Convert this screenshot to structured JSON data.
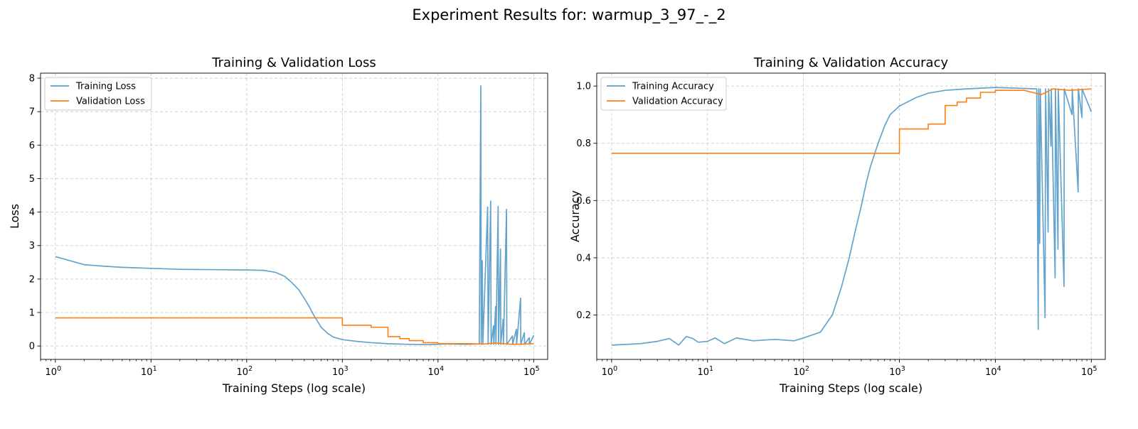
{
  "figure": {
    "suptitle": "Experiment Results for: warmup_3_97_-_2"
  },
  "chart_data": [
    {
      "type": "line",
      "title": "Training & Validation Loss",
      "xlabel": "Training Steps (log scale)",
      "ylabel": "Loss",
      "xscale": "log",
      "xlim": [
        0.7,
        140000
      ],
      "ylim": [
        -0.4,
        8.15
      ],
      "x_ticks": [
        1,
        10,
        100,
        1000,
        10000,
        100000
      ],
      "x_tick_labels": [
        {
          "base": "10",
          "exp": "0"
        },
        {
          "base": "10",
          "exp": "1"
        },
        {
          "base": "10",
          "exp": "2"
        },
        {
          "base": "10",
          "exp": "3"
        },
        {
          "base": "10",
          "exp": "4"
        },
        {
          "base": "10",
          "exp": "5"
        }
      ],
      "y_ticks": [
        0,
        1,
        2,
        3,
        4,
        5,
        6,
        7,
        8
      ],
      "y_tick_labels": [
        "0",
        "1",
        "2",
        "3",
        "4",
        "5",
        "6",
        "7",
        "8"
      ],
      "grid": true,
      "legend": "upper-left",
      "series": [
        {
          "name": "Training Loss",
          "color": "#5b9ec9",
          "points": [
            [
              1,
              2.67
            ],
            [
              2,
              2.43
            ],
            [
              3,
              2.39
            ],
            [
              5,
              2.35
            ],
            [
              10,
              2.32
            ],
            [
              20,
              2.29
            ],
            [
              50,
              2.28
            ],
            [
              100,
              2.27
            ],
            [
              150,
              2.26
            ],
            [
              200,
              2.2
            ],
            [
              250,
              2.08
            ],
            [
              300,
              1.88
            ],
            [
              350,
              1.68
            ],
            [
              400,
              1.42
            ],
            [
              450,
              1.18
            ],
            [
              500,
              0.93
            ],
            [
              550,
              0.74
            ],
            [
              600,
              0.56
            ],
            [
              700,
              0.38
            ],
            [
              800,
              0.27
            ],
            [
              1000,
              0.19
            ],
            [
              1500,
              0.13
            ],
            [
              2000,
              0.1
            ],
            [
              3000,
              0.07
            ],
            [
              5000,
              0.05
            ],
            [
              8000,
              0.04
            ],
            [
              12000,
              0.06
            ],
            [
              20000,
              0.05
            ],
            [
              27000,
              0.06
            ],
            [
              28000,
              7.77
            ],
            [
              28300,
              0.05
            ],
            [
              29000,
              2.55
            ],
            [
              29400,
              0.05
            ],
            [
              33000,
              4.15
            ],
            [
              33400,
              0.05
            ],
            [
              35500,
              4.33
            ],
            [
              35900,
              0.05
            ],
            [
              38000,
              0.6
            ],
            [
              38300,
              0.05
            ],
            [
              40000,
              1.18
            ],
            [
              40300,
              0.05
            ],
            [
              42500,
              4.17
            ],
            [
              42900,
              0.05
            ],
            [
              45000,
              2.9
            ],
            [
              45300,
              0.05
            ],
            [
              48000,
              0.8
            ],
            [
              48300,
              0.05
            ],
            [
              52000,
              4.08
            ],
            [
              52400,
              0.05
            ],
            [
              60000,
              0.3
            ],
            [
              60300,
              0.05
            ],
            [
              66000,
              0.5
            ],
            [
              66300,
              0.05
            ],
            [
              73000,
              1.43
            ],
            [
              73300,
              0.05
            ],
            [
              80000,
              0.4
            ],
            [
              80300,
              0.05
            ],
            [
              90000,
              0.25
            ],
            [
              90300,
              0.05
            ],
            [
              100000,
              0.32
            ]
          ]
        },
        {
          "name": "Validation Loss",
          "color": "#ff7f0e",
          "points": [
            [
              1,
              0.84
            ],
            [
              1000,
              0.84
            ],
            [
              1000,
              0.62
            ],
            [
              2000,
              0.62
            ],
            [
              2000,
              0.56
            ],
            [
              3000,
              0.56
            ],
            [
              3000,
              0.28
            ],
            [
              4000,
              0.28
            ],
            [
              4000,
              0.22
            ],
            [
              5000,
              0.22
            ],
            [
              5000,
              0.16
            ],
            [
              7000,
              0.16
            ],
            [
              7000,
              0.1
            ],
            [
              10000,
              0.1
            ],
            [
              10000,
              0.07
            ],
            [
              20000,
              0.07
            ],
            [
              30000,
              0.06
            ],
            [
              40000,
              0.09
            ],
            [
              60000,
              0.05
            ],
            [
              100000,
              0.07
            ]
          ]
        }
      ]
    },
    {
      "type": "line",
      "title": "Training & Validation Accuracy",
      "xlabel": "Training Steps (log scale)",
      "ylabel": "Accuracy",
      "xscale": "log",
      "xlim": [
        0.7,
        140000
      ],
      "ylim": [
        0.045,
        1.045
      ],
      "x_ticks": [
        1,
        10,
        100,
        1000,
        10000,
        100000
      ],
      "x_tick_labels": [
        {
          "base": "10",
          "exp": "0"
        },
        {
          "base": "10",
          "exp": "1"
        },
        {
          "base": "10",
          "exp": "2"
        },
        {
          "base": "10",
          "exp": "3"
        },
        {
          "base": "10",
          "exp": "4"
        },
        {
          "base": "10",
          "exp": "5"
        }
      ],
      "y_ticks": [
        0.2,
        0.4,
        0.6,
        0.8,
        1.0
      ],
      "y_tick_labels": [
        "0.2",
        "0.4",
        "0.6",
        "0.8",
        "1.0"
      ],
      "grid": true,
      "legend": "upper-left",
      "series": [
        {
          "name": "Training Accuracy",
          "color": "#5b9ec9",
          "points": [
            [
              1,
              0.095
            ],
            [
              2,
              0.1
            ],
            [
              3,
              0.108
            ],
            [
              4,
              0.118
            ],
            [
              5,
              0.095
            ],
            [
              6,
              0.125
            ],
            [
              7,
              0.118
            ],
            [
              8,
              0.105
            ],
            [
              10,
              0.108
            ],
            [
              12,
              0.12
            ],
            [
              15,
              0.1
            ],
            [
              20,
              0.12
            ],
            [
              30,
              0.11
            ],
            [
              50,
              0.115
            ],
            [
              80,
              0.11
            ],
            [
              100,
              0.12
            ],
            [
              150,
              0.14
            ],
            [
              200,
              0.2
            ],
            [
              250,
              0.3
            ],
            [
              300,
              0.4
            ],
            [
              350,
              0.5
            ],
            [
              400,
              0.58
            ],
            [
              450,
              0.66
            ],
            [
              500,
              0.72
            ],
            [
              600,
              0.8
            ],
            [
              700,
              0.86
            ],
            [
              800,
              0.9
            ],
            [
              1000,
              0.93
            ],
            [
              1500,
              0.96
            ],
            [
              2000,
              0.975
            ],
            [
              3000,
              0.985
            ],
            [
              5000,
              0.99
            ],
            [
              10000,
              0.995
            ],
            [
              27000,
              0.99
            ],
            [
              28000,
              0.15
            ],
            [
              28300,
              0.99
            ],
            [
              29000,
              0.45
            ],
            [
              29400,
              0.99
            ],
            [
              33000,
              0.19
            ],
            [
              33400,
              0.99
            ],
            [
              35500,
              0.49
            ],
            [
              35900,
              0.99
            ],
            [
              38000,
              0.79
            ],
            [
              38300,
              0.99
            ],
            [
              42000,
              0.33
            ],
            [
              42300,
              0.99
            ],
            [
              45000,
              0.43
            ],
            [
              45300,
              0.99
            ],
            [
              52000,
              0.3
            ],
            [
              52300,
              0.99
            ],
            [
              63000,
              0.9
            ],
            [
              63300,
              0.99
            ],
            [
              73000,
              0.63
            ],
            [
              73300,
              0.99
            ],
            [
              80000,
              0.89
            ],
            [
              80300,
              0.99
            ],
            [
              100000,
              0.91
            ]
          ]
        },
        {
          "name": "Validation Accuracy",
          "color": "#ff7f0e",
          "points": [
            [
              1,
              0.765
            ],
            [
              1000,
              0.765
            ],
            [
              1000,
              0.85
            ],
            [
              2000,
              0.85
            ],
            [
              2000,
              0.867
            ],
            [
              3000,
              0.867
            ],
            [
              3000,
              0.932
            ],
            [
              4000,
              0.932
            ],
            [
              4000,
              0.944
            ],
            [
              5000,
              0.944
            ],
            [
              5000,
              0.958
            ],
            [
              7000,
              0.958
            ],
            [
              7000,
              0.978
            ],
            [
              10000,
              0.978
            ],
            [
              10000,
              0.985
            ],
            [
              20000,
              0.985
            ],
            [
              30000,
              0.97
            ],
            [
              40000,
              0.99
            ],
            [
              60000,
              0.985
            ],
            [
              100000,
              0.99
            ]
          ]
        }
      ]
    }
  ]
}
